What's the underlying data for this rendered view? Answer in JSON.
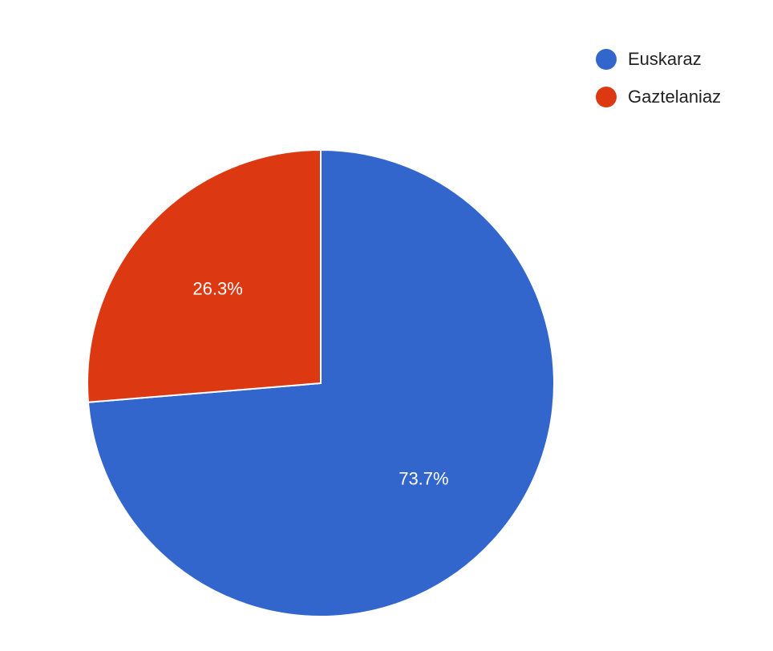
{
  "chart_data": {
    "type": "pie",
    "title": "",
    "start_angle": "top, clockwise",
    "legend_position": "top-right",
    "slices": [
      {
        "label": "Euskaraz",
        "value": 73.7,
        "data_label": "73.7%",
        "color": "#3366CC"
      },
      {
        "label": "Gaztelaniaz",
        "value": 26.3,
        "data_label": "26.3%",
        "color": "#DC3912"
      }
    ]
  }
}
